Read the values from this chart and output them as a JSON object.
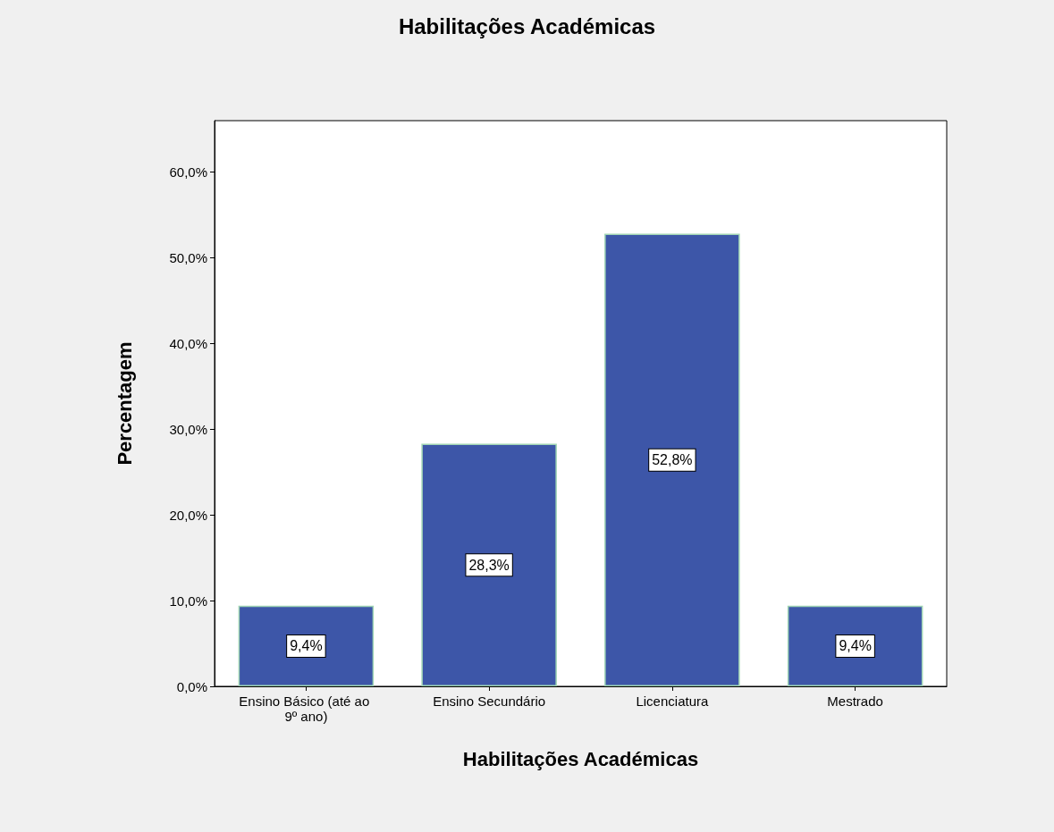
{
  "chart_data": {
    "type": "bar",
    "title": "Habilitações Académicas",
    "xlabel": "Habilitações Académicas",
    "ylabel": "Percentagem",
    "categories": [
      "Ensino Básico (até ao 9º ano)",
      "Ensino Secundário",
      "Licenciatura",
      "Mestrado"
    ],
    "values": [
      9.4,
      28.3,
      52.8,
      9.4
    ],
    "value_labels": [
      "9,4%",
      "28,3%",
      "52,8%",
      "9,4%"
    ],
    "color": "#3d56a8",
    "ylim": [
      0,
      66
    ],
    "yticks": [
      {
        "value": 0,
        "label": "0,0%"
      },
      {
        "value": 10,
        "label": "10,0%"
      },
      {
        "value": 20,
        "label": "20,0%"
      },
      {
        "value": 30,
        "label": "30,0%"
      },
      {
        "value": 40,
        "label": "40,0%"
      },
      {
        "value": 50,
        "label": "50,0%"
      },
      {
        "value": 60,
        "label": "60,0%"
      }
    ],
    "grid": false
  }
}
